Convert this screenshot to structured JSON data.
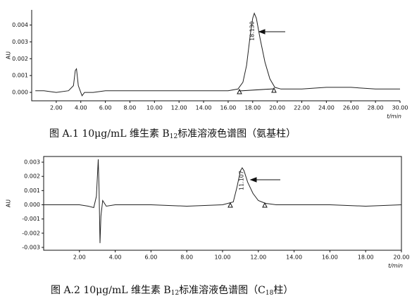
{
  "chart_data": [
    {
      "type": "line",
      "x_label": "t/min",
      "y_label": "AU",
      "peak_label": "18.130",
      "color": "#222222",
      "caption": [
        "图 A.1 10μg/mL 维生素 B",
        "12",
        "标准溶液色谱图（氨基柱）"
      ],
      "xlim": [
        0,
        30
      ],
      "ylim": [
        -0.0005,
        0.0049
      ],
      "xticks": [
        {
          "value": 2,
          "label": "2.00"
        },
        {
          "value": 4,
          "label": "4.00"
        },
        {
          "value": 6,
          "label": "6.00"
        },
        {
          "value": 8,
          "label": "8.00"
        },
        {
          "value": 10,
          "label": "10.00"
        },
        {
          "value": 12,
          "label": "12.00"
        },
        {
          "value": 14,
          "label": "14.00"
        },
        {
          "value": 16,
          "label": "16.00"
        },
        {
          "value": 18,
          "label": "18.00"
        },
        {
          "value": 20,
          "label": "20.00"
        },
        {
          "value": 22,
          "label": "22.00"
        },
        {
          "value": 24,
          "label": "24.00"
        },
        {
          "value": 26,
          "label": "26.00"
        },
        {
          "value": 28,
          "label": "28.00"
        },
        {
          "value": 30,
          "label": "30.00"
        }
      ],
      "yticks": [
        {
          "value": 0,
          "label": "0.000"
        },
        {
          "value": 0.001,
          "label": "0.001"
        },
        {
          "value": 0.002,
          "label": "0.002"
        },
        {
          "value": 0.003,
          "label": "0.003"
        },
        {
          "value": 0.004,
          "label": "0.004"
        }
      ],
      "x": [
        0.3,
        1,
        2,
        3,
        3.4,
        3.55,
        3.65,
        3.8,
        4.0,
        4.1,
        4.3,
        5,
        6,
        8,
        10,
        12,
        14,
        16,
        16.8,
        17.2,
        17.5,
        17.8,
        18.0,
        18.13,
        18.3,
        18.6,
        19.0,
        19.4,
        19.8,
        20.3,
        21,
        22,
        24,
        26,
        28,
        30
      ],
      "values": [
        0.0001,
        0.0001,
        0.0,
        0.0001,
        0.0004,
        0.0013,
        0.0014,
        0.0004,
        0.0,
        -0.0002,
        0.0,
        0.0,
        0.0001,
        0.0001,
        0.0001,
        0.0001,
        0.0001,
        0.0001,
        0.0002,
        0.0006,
        0.0016,
        0.0034,
        0.0044,
        0.0047,
        0.0044,
        0.0032,
        0.0018,
        0.0008,
        0.0003,
        0.0002,
        0.0002,
        0.0002,
        0.0003,
        0.0003,
        0.0002,
        0.0002
      ]
    },
    {
      "type": "line",
      "x_label": "t/min",
      "y_label": "AU",
      "peak_label": "11.107",
      "color": "#222222",
      "caption": [
        "图 A.2 10μg/mL 维生素 B",
        "12",
        "标准溶液色谱图（C",
        "18",
        "柱）"
      ],
      "xlim": [
        0,
        20
      ],
      "ylim": [
        -0.0032,
        0.0034
      ],
      "xticks": [
        {
          "value": 2,
          "label": "2.00"
        },
        {
          "value": 4,
          "label": "4.00"
        },
        {
          "value": 6,
          "label": "6.00"
        },
        {
          "value": 8,
          "label": "8.00"
        },
        {
          "value": 10,
          "label": "10.00"
        },
        {
          "value": 12,
          "label": "12.00"
        },
        {
          "value": 14,
          "label": "14.00"
        },
        {
          "value": 16,
          "label": "16.00"
        },
        {
          "value": 18,
          "label": "18.00"
        },
        {
          "value": 20,
          "label": "20.00"
        }
      ],
      "yticks": [
        {
          "value": 0.003,
          "label": "0.003"
        },
        {
          "value": 0.002,
          "label": "0.002"
        },
        {
          "value": 0.001,
          "label": "0.001"
        },
        {
          "value": 0,
          "label": "0.000"
        },
        {
          "value": -0.001,
          "label": "-0.001"
        },
        {
          "value": -0.002,
          "label": "-0.002"
        },
        {
          "value": -0.003,
          "label": "-0.003"
        }
      ],
      "x": [
        0,
        1,
        2,
        2.5,
        2.8,
        2.95,
        3.05,
        3.1,
        3.15,
        3.2,
        3.3,
        3.5,
        4,
        5,
        6,
        8,
        10,
        10.6,
        10.8,
        11.0,
        11.1,
        11.2,
        11.4,
        11.7,
        12.0,
        12.4,
        13,
        14,
        16,
        18,
        20
      ],
      "values": [
        0.0,
        0.0,
        0.0,
        -0.0001,
        -0.0002,
        0.0006,
        0.0032,
        0.001,
        -0.0027,
        -0.0008,
        0.0003,
        -0.0001,
        0.0,
        0.0,
        0.0,
        -0.0001,
        0.0,
        0.0002,
        0.0012,
        0.0024,
        0.0026,
        0.0024,
        0.0016,
        0.0008,
        0.0003,
        0.0001,
        0.0,
        0.0,
        0.0,
        -0.0001,
        0.0
      ]
    }
  ]
}
